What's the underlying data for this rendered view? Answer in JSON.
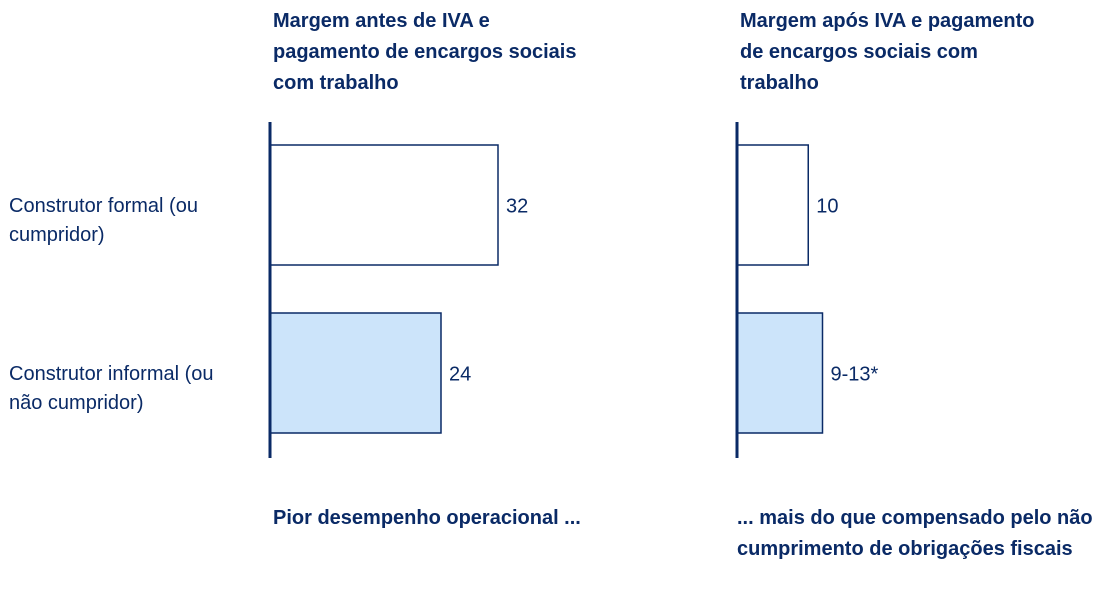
{
  "chart_data": [
    {
      "type": "bar",
      "orientation": "horizontal",
      "title": "Margem antes de IVA e pagamento de encargos sociais com trabalho",
      "categories": [
        "Construtor formal (ou cumpridor)",
        "Construtor informal (ou não cumpridor)"
      ],
      "values": [
        32,
        24
      ],
      "colors": [
        "#ffffff",
        "#cce4fa"
      ],
      "xlim": [
        0,
        40
      ],
      "annotation": "Pior desempenho operacional ..."
    },
    {
      "type": "bar",
      "orientation": "horizontal",
      "title": "Margem após IVA e pagamento de encargos sociais com trabalho",
      "values": [
        10,
        12
      ],
      "value_labels": [
        "10",
        "9-13*"
      ],
      "colors": [
        "#ffffff",
        "#cce4fa"
      ],
      "xlim": [
        0,
        40
      ],
      "annotation": "... mais do que compensado pelo não cumprimento de obrigações fiscais"
    }
  ]
}
